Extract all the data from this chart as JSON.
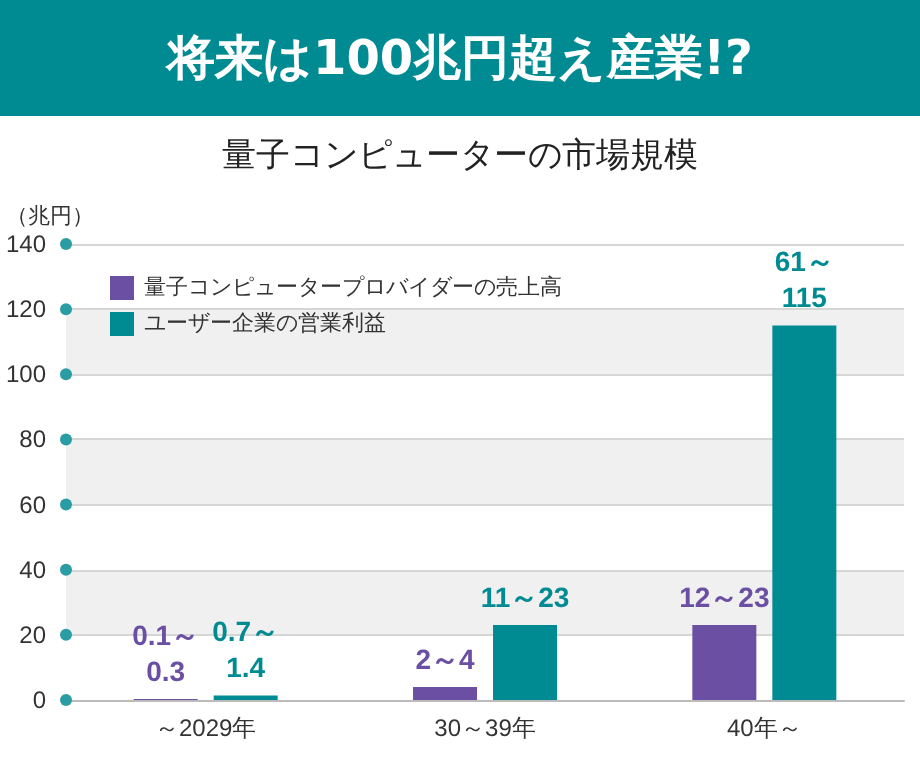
{
  "chart_data": {
    "type": "bar",
    "title": "将来は100兆円超え産業!?",
    "subtitle": "量子コンピューターの市場規模",
    "ylabel": "（兆円）",
    "categories": [
      "～2029年",
      "30～39年",
      "40年～"
    ],
    "series": [
      {
        "name": "量子コンピュータープロバイダーの売上高",
        "color": "#6a4fa3",
        "values": [
          0.3,
          4,
          23
        ],
        "value_labels": [
          "0.1～0.3",
          "2～4",
          "12～23"
        ]
      },
      {
        "name": "ユーザー企業の営業利益",
        "color": "#008b93",
        "values": [
          1.4,
          23,
          115
        ],
        "value_labels": [
          "0.7～1.4",
          "11～23",
          "61～115"
        ]
      }
    ],
    "ylim": [
      0,
      140
    ],
    "yticks": [
      0,
      20,
      40,
      60,
      80,
      100,
      120,
      140
    ],
    "grid": "y",
    "legend": "top left"
  }
}
